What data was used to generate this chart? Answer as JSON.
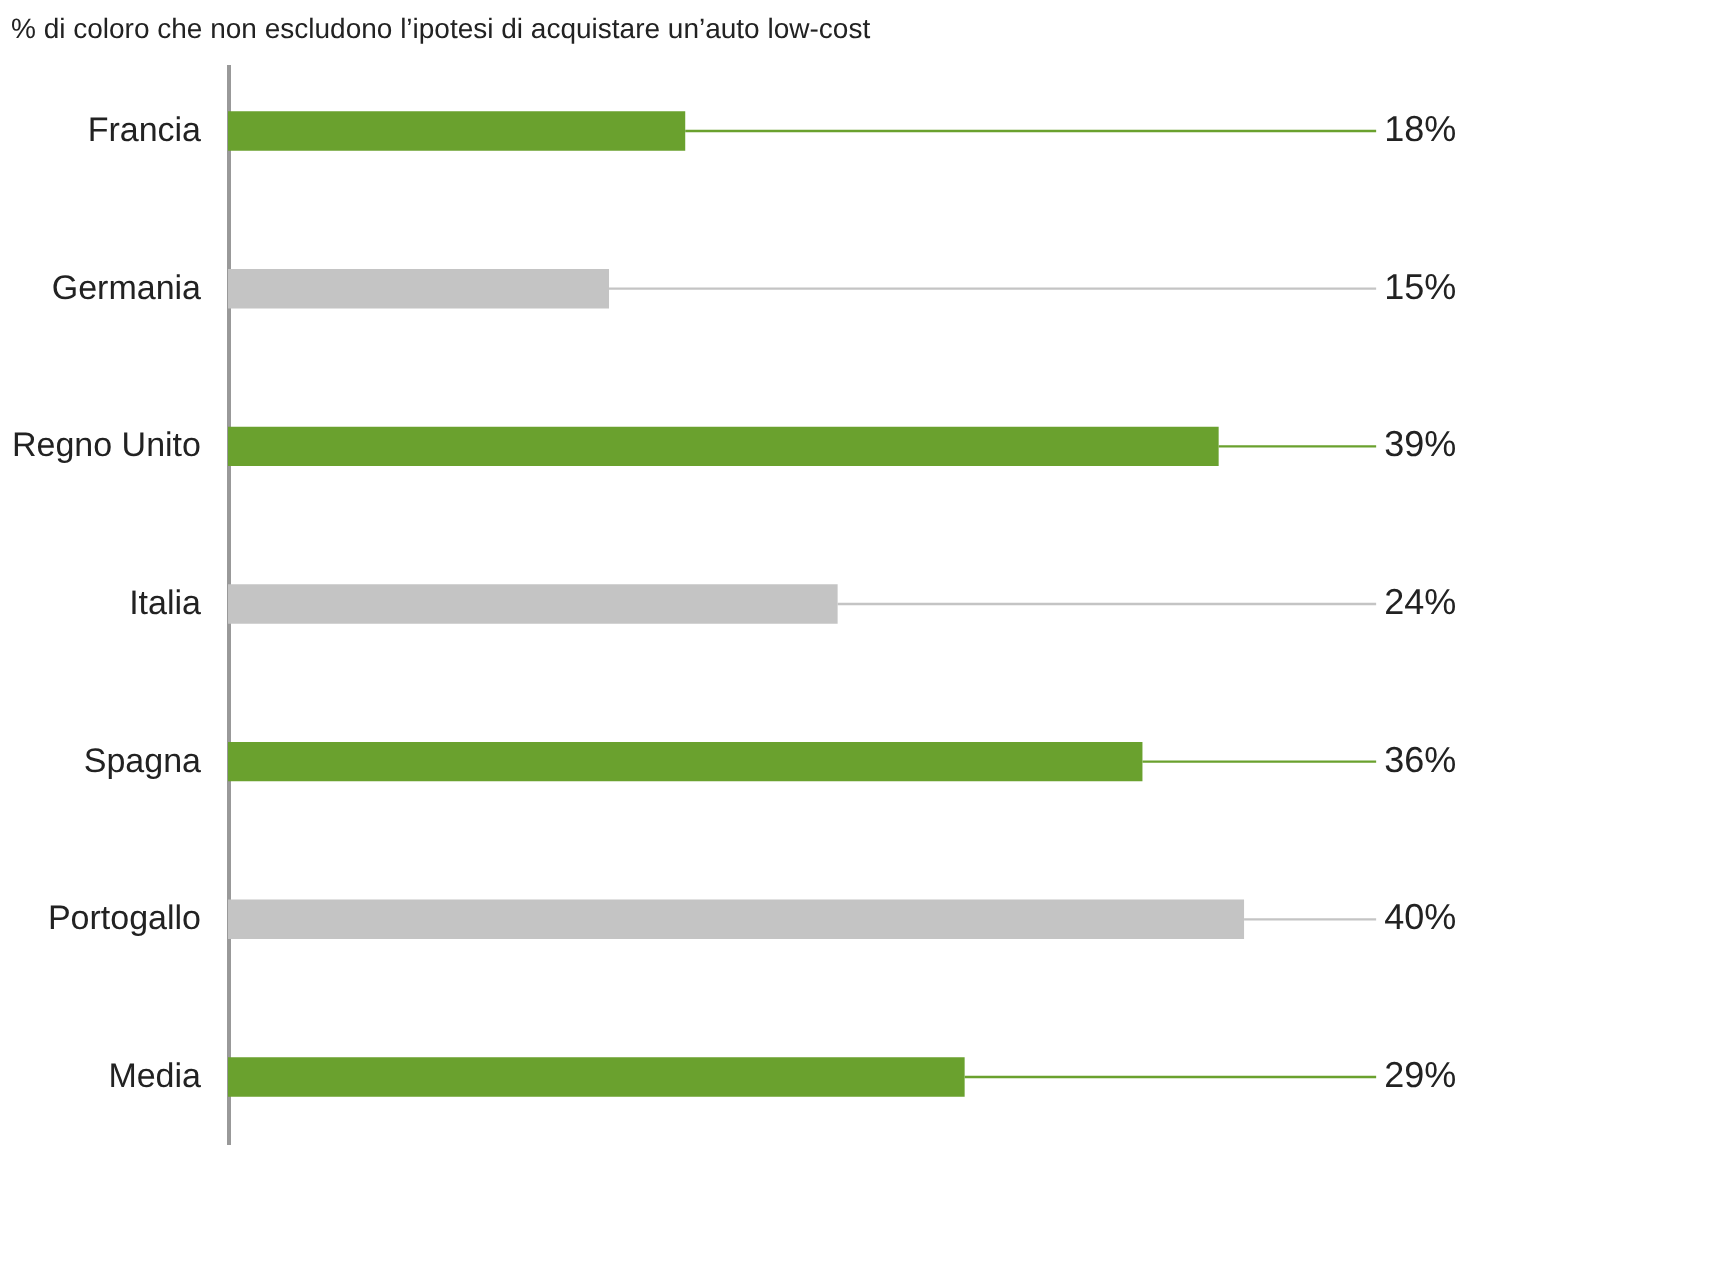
{
  "chart_data": {
    "type": "bar",
    "orientation": "horizontal",
    "title": "% di coloro che non escludono l’ipotesi di acquistare un’auto low-cost",
    "categories": [
      "Francia",
      "Germania",
      "Regno Unito",
      "Italia",
      "Spagna",
      "Portogallo",
      "Media"
    ],
    "values": [
      18,
      15,
      39,
      24,
      36,
      40,
      29
    ],
    "colors": [
      "#6aa12e",
      "#c4c4c4",
      "#6aa12e",
      "#c4c4c4",
      "#6aa12e",
      "#c4c4c4",
      "#6aa12e"
    ],
    "data_labels": true,
    "value_labels": [
      "18%",
      "15%",
      "39%",
      "24%",
      "36%",
      "40%",
      "29%"
    ],
    "grid": false
  }
}
